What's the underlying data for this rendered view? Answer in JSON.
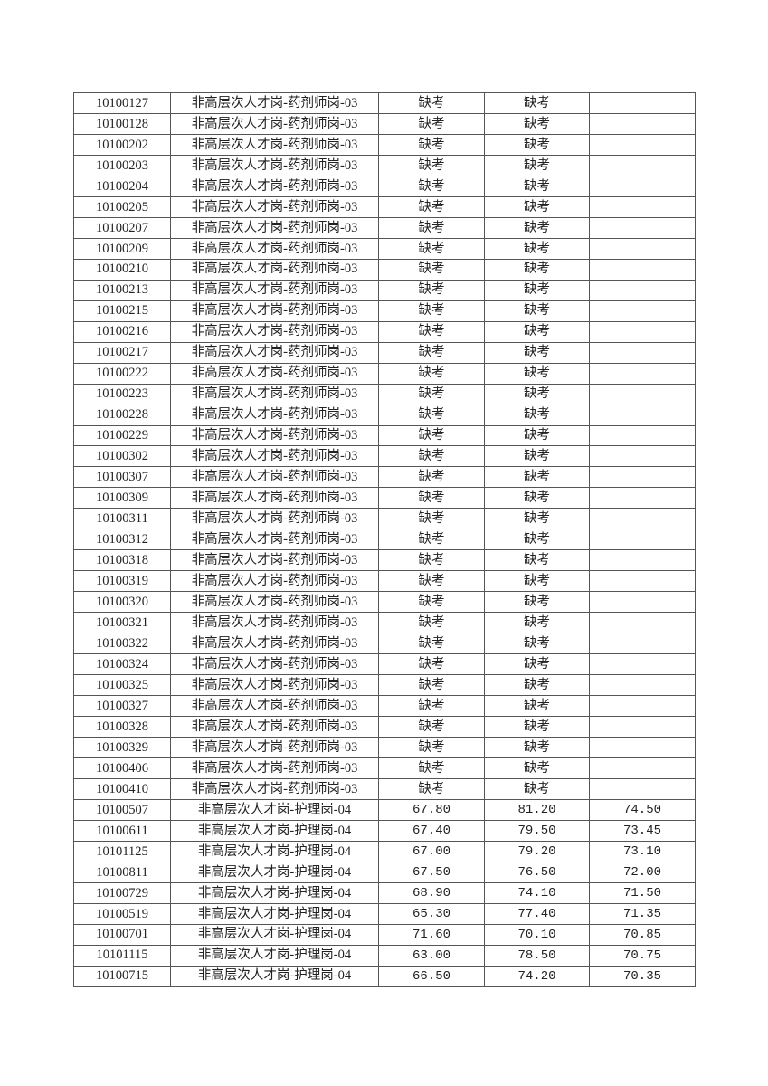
{
  "table": {
    "rows": [
      [
        "10100127",
        "非高层次人才岗-药剂师岗-03",
        "缺考",
        "缺考",
        ""
      ],
      [
        "10100128",
        "非高层次人才岗-药剂师岗-03",
        "缺考",
        "缺考",
        ""
      ],
      [
        "10100202",
        "非高层次人才岗-药剂师岗-03",
        "缺考",
        "缺考",
        ""
      ],
      [
        "10100203",
        "非高层次人才岗-药剂师岗-03",
        "缺考",
        "缺考",
        ""
      ],
      [
        "10100204",
        "非高层次人才岗-药剂师岗-03",
        "缺考",
        "缺考",
        ""
      ],
      [
        "10100205",
        "非高层次人才岗-药剂师岗-03",
        "缺考",
        "缺考",
        ""
      ],
      [
        "10100207",
        "非高层次人才岗-药剂师岗-03",
        "缺考",
        "缺考",
        ""
      ],
      [
        "10100209",
        "非高层次人才岗-药剂师岗-03",
        "缺考",
        "缺考",
        ""
      ],
      [
        "10100210",
        "非高层次人才岗-药剂师岗-03",
        "缺考",
        "缺考",
        ""
      ],
      [
        "10100213",
        "非高层次人才岗-药剂师岗-03",
        "缺考",
        "缺考",
        ""
      ],
      [
        "10100215",
        "非高层次人才岗-药剂师岗-03",
        "缺考",
        "缺考",
        ""
      ],
      [
        "10100216",
        "非高层次人才岗-药剂师岗-03",
        "缺考",
        "缺考",
        ""
      ],
      [
        "10100217",
        "非高层次人才岗-药剂师岗-03",
        "缺考",
        "缺考",
        ""
      ],
      [
        "10100222",
        "非高层次人才岗-药剂师岗-03",
        "缺考",
        "缺考",
        ""
      ],
      [
        "10100223",
        "非高层次人才岗-药剂师岗-03",
        "缺考",
        "缺考",
        ""
      ],
      [
        "10100228",
        "非高层次人才岗-药剂师岗-03",
        "缺考",
        "缺考",
        ""
      ],
      [
        "10100229",
        "非高层次人才岗-药剂师岗-03",
        "缺考",
        "缺考",
        ""
      ],
      [
        "10100302",
        "非高层次人才岗-药剂师岗-03",
        "缺考",
        "缺考",
        ""
      ],
      [
        "10100307",
        "非高层次人才岗-药剂师岗-03",
        "缺考",
        "缺考",
        ""
      ],
      [
        "10100309",
        "非高层次人才岗-药剂师岗-03",
        "缺考",
        "缺考",
        ""
      ],
      [
        "10100311",
        "非高层次人才岗-药剂师岗-03",
        "缺考",
        "缺考",
        ""
      ],
      [
        "10100312",
        "非高层次人才岗-药剂师岗-03",
        "缺考",
        "缺考",
        ""
      ],
      [
        "10100318",
        "非高层次人才岗-药剂师岗-03",
        "缺考",
        "缺考",
        ""
      ],
      [
        "10100319",
        "非高层次人才岗-药剂师岗-03",
        "缺考",
        "缺考",
        ""
      ],
      [
        "10100320",
        "非高层次人才岗-药剂师岗-03",
        "缺考",
        "缺考",
        ""
      ],
      [
        "10100321",
        "非高层次人才岗-药剂师岗-03",
        "缺考",
        "缺考",
        ""
      ],
      [
        "10100322",
        "非高层次人才岗-药剂师岗-03",
        "缺考",
        "缺考",
        ""
      ],
      [
        "10100324",
        "非高层次人才岗-药剂师岗-03",
        "缺考",
        "缺考",
        ""
      ],
      [
        "10100325",
        "非高层次人才岗-药剂师岗-03",
        "缺考",
        "缺考",
        ""
      ],
      [
        "10100327",
        "非高层次人才岗-药剂师岗-03",
        "缺考",
        "缺考",
        ""
      ],
      [
        "10100328",
        "非高层次人才岗-药剂师岗-03",
        "缺考",
        "缺考",
        ""
      ],
      [
        "10100329",
        "非高层次人才岗-药剂师岗-03",
        "缺考",
        "缺考",
        ""
      ],
      [
        "10100406",
        "非高层次人才岗-药剂师岗-03",
        "缺考",
        "缺考",
        ""
      ],
      [
        "10100410",
        "非高层次人才岗-药剂师岗-03",
        "缺考",
        "缺考",
        ""
      ],
      [
        "10100507",
        "非高层次人才岗-护理岗-04",
        "67.80",
        "81.20",
        "74.50"
      ],
      [
        "10100611",
        "非高层次人才岗-护理岗-04",
        "67.40",
        "79.50",
        "73.45"
      ],
      [
        "10101125",
        "非高层次人才岗-护理岗-04",
        "67.00",
        "79.20",
        "73.10"
      ],
      [
        "10100811",
        "非高层次人才岗-护理岗-04",
        "67.50",
        "76.50",
        "72.00"
      ],
      [
        "10100729",
        "非高层次人才岗-护理岗-04",
        "68.90",
        "74.10",
        "71.50"
      ],
      [
        "10100519",
        "非高层次人才岗-护理岗-04",
        "65.30",
        "77.40",
        "71.35"
      ],
      [
        "10100701",
        "非高层次人才岗-护理岗-04",
        "71.60",
        "70.10",
        "70.85"
      ],
      [
        "10101115",
        "非高层次人才岗-护理岗-04",
        "63.00",
        "78.50",
        "70.75"
      ],
      [
        "10100715",
        "非高层次人才岗-护理岗-04",
        "66.50",
        "74.20",
        "70.35"
      ]
    ]
  }
}
